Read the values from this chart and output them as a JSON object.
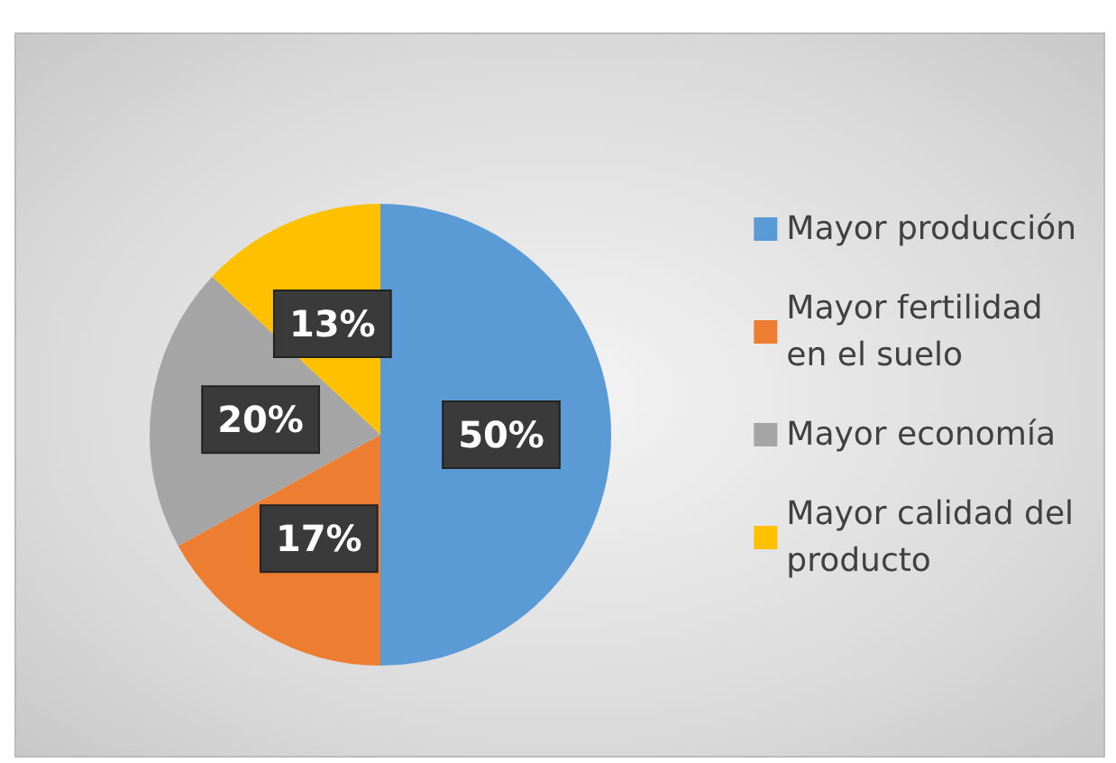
{
  "chart_data": {
    "type": "pie",
    "categories": [
      "Mayor producción",
      "Mayor fertilidad en el suelo",
      "Mayor economía",
      "Mayor calidad del producto"
    ],
    "values": [
      50,
      17,
      20,
      13
    ],
    "colors": [
      "#5b9bd5",
      "#ed7d31",
      "#a5a5a5",
      "#ffc000"
    ],
    "value_labels": [
      "50%",
      "17%",
      "20%",
      "13%"
    ],
    "legend": "right"
  }
}
